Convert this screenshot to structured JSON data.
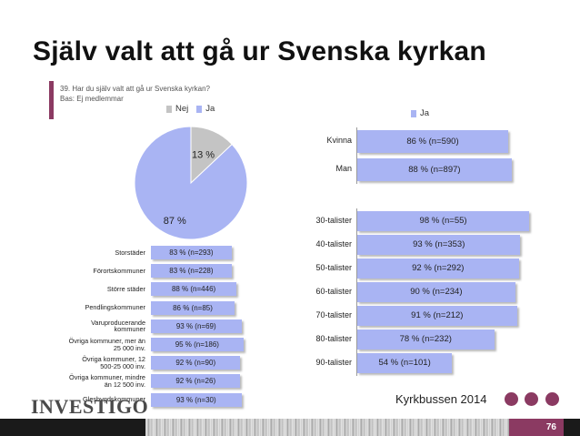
{
  "slide": {
    "title": "Själv valt att gå ur Svenska kyrkan",
    "question": "39. Har du själv valt att gå ur Svenska kyrkan?",
    "base": "Bas: Ej medlemmar",
    "brand": "INVESTIGO",
    "footer_text": "Kyrkbussen 2014",
    "page_number": "76"
  },
  "colors": {
    "ja": "#a9b4f3",
    "nej": "#c4c4c4",
    "accent": "#8b3a62"
  },
  "chart_data": [
    {
      "type": "pie",
      "legend": [
        "Nej",
        "Ja"
      ],
      "legend_placement": "top",
      "slices": [
        {
          "name": "Nej",
          "value": 13,
          "label": "13 %"
        },
        {
          "name": "Ja",
          "value": 87,
          "label": "87 %"
        }
      ]
    },
    {
      "type": "bar",
      "orientation": "horizontal",
      "xlim": [
        0,
        100
      ],
      "categories": [
        "Storstäder",
        "Förortskommuner",
        "Större städer",
        "Pendlingskommuner",
        "Varuproducerande kommuner",
        "Övriga kommuner, mer än 25 000 inv.",
        "Övriga kommuner, 12 500-25 000 inv.",
        "Övriga kommuner, mindre än 12 500 inv.",
        "Glesbygdskommuner"
      ],
      "category_lines": [
        [
          "Storstäder"
        ],
        [
          "Förortskommuner"
        ],
        [
          "Större städer"
        ],
        [
          "Pendlingskommuner"
        ],
        [
          "Varuproducerande",
          "kommuner"
        ],
        [
          "Övriga kommuner, mer än",
          "25 000 inv."
        ],
        [
          "Övriga kommuner, 12",
          "500-25 000 inv."
        ],
        [
          "Övriga kommuner, mindre",
          "än 12 500 inv."
        ],
        [
          "Glesbygdskommuner"
        ]
      ],
      "values": [
        83,
        83,
        88,
        86,
        93,
        95,
        92,
        92,
        93
      ],
      "labels": [
        "83 % (n=293)",
        "83 % (n=228)",
        "88 % (n=446)",
        "86 % (n=85)",
        "93 % (n=69)",
        "95 % (n=186)",
        "92 % (n=90)",
        "92 % (n=26)",
        "93 % (n=30)"
      ]
    },
    {
      "type": "bar",
      "orientation": "horizontal",
      "legend": [
        "Ja"
      ],
      "xlim": [
        0,
        100
      ],
      "categories": [
        "Kvinna",
        "Man"
      ],
      "values": [
        86,
        88
      ],
      "labels": [
        "86 % (n=590)",
        "88 % (n=897)"
      ]
    },
    {
      "type": "bar",
      "orientation": "horizontal",
      "xlim": [
        0,
        100
      ],
      "categories": [
        "30-talister",
        "40-talister",
        "50-talister",
        "60-talister",
        "70-talister",
        "80-talister",
        "90-talister"
      ],
      "values": [
        98,
        93,
        92,
        90,
        91,
        78,
        54
      ],
      "labels": [
        "98 % (n=55)",
        "93 % (n=353)",
        "92 % (n=292)",
        "90 % (n=234)",
        "91 % (n=212)",
        "78 % (n=232)",
        "54 % (n=101)"
      ]
    }
  ]
}
